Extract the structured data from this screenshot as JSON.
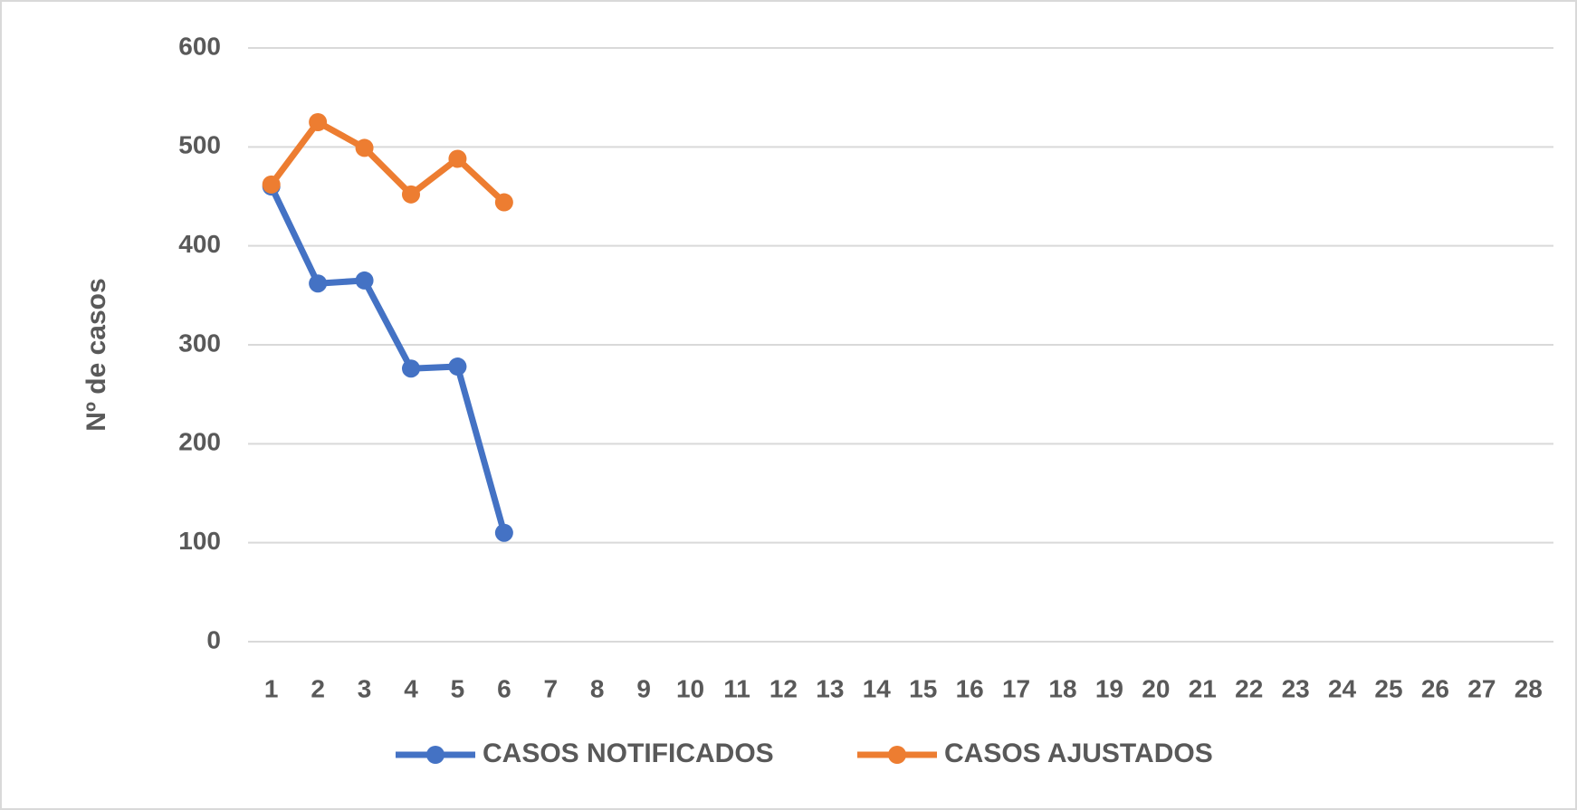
{
  "chart_data": {
    "type": "line",
    "y_label": "Nº de casos",
    "categories": [
      "1",
      "2",
      "3",
      "4",
      "5",
      "6",
      "7",
      "8",
      "9",
      "10",
      "11",
      "12",
      "13",
      "14",
      "15",
      "16",
      "17",
      "18",
      "19",
      "20",
      "21",
      "22",
      "23",
      "24",
      "25",
      "26",
      "27",
      "28"
    ],
    "series": [
      {
        "name": "CASOS NOTIFICADOS",
        "color": "#4472c4",
        "values": [
          460,
          362,
          365,
          276,
          278,
          110,
          null,
          null,
          null,
          null,
          null,
          null,
          null,
          null,
          null,
          null,
          null,
          null,
          null,
          null,
          null,
          null,
          null,
          null,
          null,
          null,
          null,
          null
        ]
      },
      {
        "name": "CASOS AJUSTADOS",
        "color": "#ed7d31",
        "values": [
          462,
          525,
          499,
          452,
          488,
          444,
          null,
          null,
          null,
          null,
          null,
          null,
          null,
          null,
          null,
          null,
          null,
          null,
          null,
          null,
          null,
          null,
          null,
          null,
          null,
          null,
          null,
          null
        ]
      }
    ],
    "ylim": [
      0,
      600
    ],
    "yticks": [
      0,
      100,
      200,
      300,
      400,
      500,
      600
    ],
    "grid": true,
    "legend": "bottom"
  }
}
